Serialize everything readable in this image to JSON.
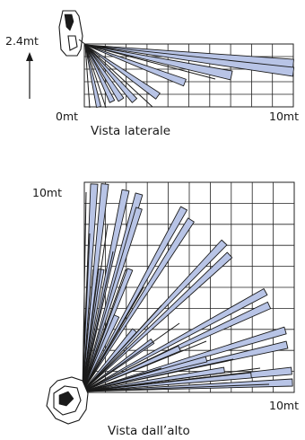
{
  "side_view": {
    "height_label": "2.4mt",
    "start_label": "0mt",
    "end_label": "10mt",
    "caption": "Vista laterale"
  },
  "top_view": {
    "range_label": "10mt",
    "end_label": "10mt",
    "caption": "Vista dall’alto"
  },
  "colors": {
    "beam_fill": "#b8c4e6",
    "outline": "#1a1a1a"
  }
}
